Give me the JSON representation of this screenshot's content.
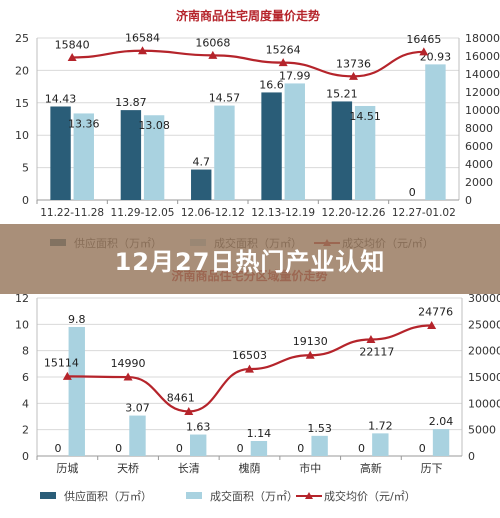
{
  "banner": {
    "title": "12月27日热门产业认知"
  },
  "colors": {
    "supply": "#2a5d78",
    "deal": "#a9d2e0",
    "price": "#b5242b",
    "grid": "#d9d9d9",
    "axis_text": "#333333"
  },
  "chart_data": [
    {
      "type": "bar",
      "title": "济南商品住宅周度量价走势",
      "categories": [
        "11.22-11.28",
        "11.29-12.05",
        "12.06-12.12",
        "12.13-12.19",
        "12.20-12.26",
        "12.27-01.02"
      ],
      "series": [
        {
          "name": "供应面积（万㎡）",
          "kind": "bar",
          "values": [
            14.43,
            13.87,
            4.7,
            16.6,
            15.21,
            0
          ]
        },
        {
          "name": "成交面积（万㎡）",
          "kind": "bar",
          "values": [
            13.36,
            13.08,
            14.57,
            17.99,
            14.51,
            20.93
          ]
        },
        {
          "name": "成交均价（元/㎡）",
          "kind": "line",
          "axis": "right",
          "values": [
            15840,
            16584,
            16068,
            15264,
            13736,
            16465
          ]
        }
      ],
      "y_left": {
        "min": 0,
        "max": 25,
        "ticks": [
          0,
          5,
          10,
          15,
          20,
          25
        ]
      },
      "y_right": {
        "min": 0,
        "max": 18000,
        "ticks": [
          0,
          2000,
          4000,
          6000,
          8000,
          10000,
          12000,
          14000,
          16000,
          18000
        ]
      },
      "grid": true,
      "legend_position": "bottom"
    },
    {
      "type": "bar",
      "title": "济南商品住宅分区域量价走势",
      "categories": [
        "历城",
        "天桥",
        "长清",
        "槐荫",
        "市中",
        "高新",
        "历下"
      ],
      "series": [
        {
          "name": "供应面积（万㎡）",
          "kind": "bar",
          "values": [
            0,
            0,
            0,
            0,
            0,
            0,
            0
          ]
        },
        {
          "name": "成交面积（万㎡）",
          "kind": "bar",
          "values": [
            9.8,
            3.07,
            1.63,
            1.14,
            1.53,
            1.72,
            2.04
          ]
        },
        {
          "name": "成交均价（元/㎡）",
          "kind": "line",
          "axis": "right",
          "values": [
            15114,
            14990,
            8461,
            16503,
            19130,
            22117,
            24776
          ]
        }
      ],
      "y_left": {
        "min": 0,
        "max": 12,
        "ticks": [
          0,
          2,
          4,
          6,
          8,
          10,
          12
        ]
      },
      "y_right": {
        "min": 0,
        "max": 30000,
        "ticks": [
          0,
          5000,
          10000,
          15000,
          20000,
          25000,
          30000
        ]
      },
      "grid": true,
      "legend_position": "bottom"
    }
  ]
}
